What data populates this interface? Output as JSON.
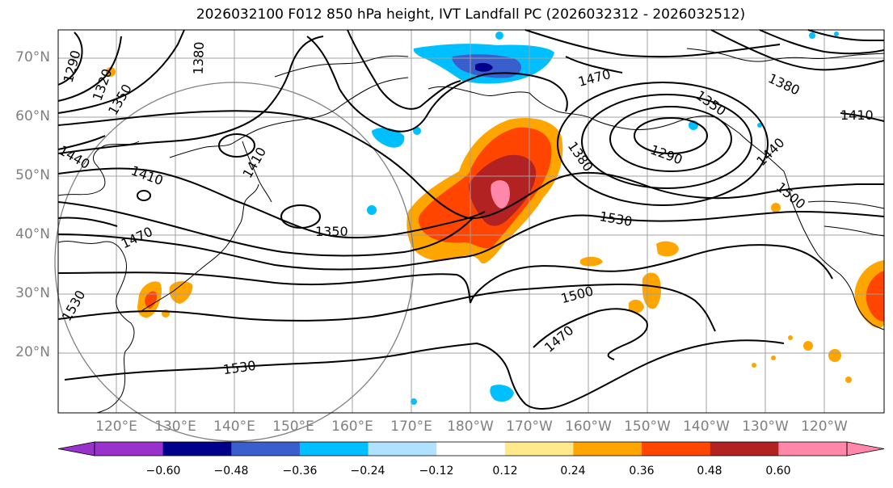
{
  "title": "2026032100 F012 850 hPa height, IVT Landfall PC (2026032312 - 2026032512)",
  "lat_labels": [
    "70°N",
    "60°N",
    "50°N",
    "40°N",
    "30°N",
    "20°N"
  ],
  "lon_labels": [
    "120°E",
    "130°E",
    "140°E",
    "150°E",
    "160°E",
    "170°E",
    "180°W",
    "170°W",
    "160°W",
    "150°W",
    "140°W",
    "130°W",
    "120°W"
  ],
  "contour_labels": [
    "1290",
    "1320",
    "1350",
    "1380",
    "1410",
    "1440",
    "1470",
    "1530",
    "1350",
    "1410",
    "1470",
    "1530",
    "1290",
    "1380",
    "1500",
    "1440",
    "1410",
    "1500",
    "1470",
    "1530",
    "1380",
    "1350"
  ],
  "colorbar": {
    "ticks": [
      "−0.60",
      "−0.48",
      "−0.36",
      "−0.24",
      "−0.12",
      "0.12",
      "0.24",
      "0.36",
      "0.48",
      "0.60"
    ],
    "colors": [
      "#9932cc",
      "#00008b",
      "#3a5fcd",
      "#00bfff",
      "#b0e2ff",
      "#ffffff",
      "#ffe98a",
      "#ffa500",
      "#ff4500",
      "#b22222",
      "#ff88aa"
    ]
  },
  "colors": {
    "grid": "#a0a0a0",
    "contour": "#000000",
    "label": "#808080"
  }
}
